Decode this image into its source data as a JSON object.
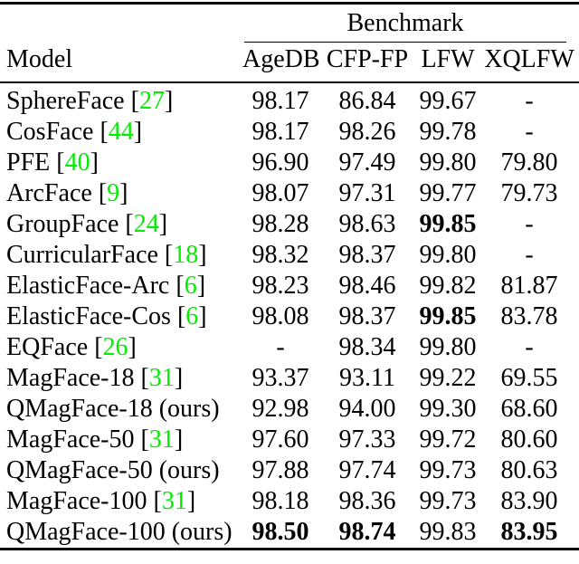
{
  "table": {
    "group_header": "Benchmark",
    "cite_open": "[",
    "cite_close": "]",
    "columns": [
      "Model",
      "AgeDB",
      "CFP-FP",
      "LFW",
      "XQLFW"
    ],
    "rows": [
      {
        "model": "SphereFace",
        "ref": "27",
        "suffix": "",
        "values": [
          "98.17",
          "86.84",
          "99.67",
          "-"
        ],
        "bold": [
          false,
          false,
          false,
          false
        ]
      },
      {
        "model": "CosFace",
        "ref": "44",
        "suffix": "",
        "values": [
          "98.17",
          "98.26",
          "99.78",
          "-"
        ],
        "bold": [
          false,
          false,
          false,
          false
        ]
      },
      {
        "model": "PFE",
        "ref": "40",
        "suffix": "",
        "values": [
          "96.90",
          "97.49",
          "99.80",
          "79.80"
        ],
        "bold": [
          false,
          false,
          false,
          false
        ]
      },
      {
        "model": "ArcFace",
        "ref": "9",
        "suffix": "",
        "values": [
          "98.07",
          "97.31",
          "99.77",
          "79.73"
        ],
        "bold": [
          false,
          false,
          false,
          false
        ]
      },
      {
        "model": "GroupFace",
        "ref": "24",
        "suffix": "",
        "values": [
          "98.28",
          "98.63",
          "99.85",
          "-"
        ],
        "bold": [
          false,
          false,
          true,
          false
        ]
      },
      {
        "model": "CurricularFace",
        "ref": "18",
        "suffix": "",
        "values": [
          "98.32",
          "98.37",
          "99.80",
          "-"
        ],
        "bold": [
          false,
          false,
          false,
          false
        ]
      },
      {
        "model": "ElasticFace-Arc",
        "ref": "6",
        "suffix": "",
        "values": [
          "98.23",
          "98.46",
          "99.82",
          "81.87"
        ],
        "bold": [
          false,
          false,
          false,
          false
        ]
      },
      {
        "model": "ElasticFace-Cos",
        "ref": "6",
        "suffix": "",
        "values": [
          "98.08",
          "98.37",
          "99.85",
          "83.78"
        ],
        "bold": [
          false,
          false,
          true,
          false
        ]
      },
      {
        "model": "EQFace",
        "ref": "26",
        "suffix": "",
        "values": [
          "-",
          "98.34",
          "99.80",
          "-"
        ],
        "bold": [
          false,
          false,
          false,
          false
        ]
      },
      {
        "model": "MagFace-18",
        "ref": "31",
        "suffix": "",
        "values": [
          "93.37",
          "93.11",
          "99.22",
          "69.55"
        ],
        "bold": [
          false,
          false,
          false,
          false
        ]
      },
      {
        "model": "QMagFace-18",
        "ref": null,
        "suffix": "(ours)",
        "values": [
          "92.98",
          "94.00",
          "99.30",
          "68.60"
        ],
        "bold": [
          false,
          false,
          false,
          false
        ]
      },
      {
        "model": "MagFace-50",
        "ref": "31",
        "suffix": "",
        "values": [
          "97.60",
          "97.33",
          "99.72",
          "80.60"
        ],
        "bold": [
          false,
          false,
          false,
          false
        ]
      },
      {
        "model": "QMagFace-50",
        "ref": null,
        "suffix": "(ours)",
        "values": [
          "97.88",
          "97.74",
          "99.73",
          "80.63"
        ],
        "bold": [
          false,
          false,
          false,
          false
        ]
      },
      {
        "model": "MagFace-100",
        "ref": "31",
        "suffix": "",
        "values": [
          "98.18",
          "98.36",
          "99.73",
          "83.90"
        ],
        "bold": [
          false,
          false,
          false,
          false
        ]
      },
      {
        "model": "QMagFace-100",
        "ref": null,
        "suffix": "(ours)",
        "values": [
          "98.50",
          "98.74",
          "99.83",
          "83.95"
        ],
        "bold": [
          true,
          true,
          false,
          true
        ]
      }
    ],
    "colors": {
      "citation": "#00ee00",
      "text": "#000000",
      "rule": "#000000",
      "background": "#ffffff"
    }
  }
}
